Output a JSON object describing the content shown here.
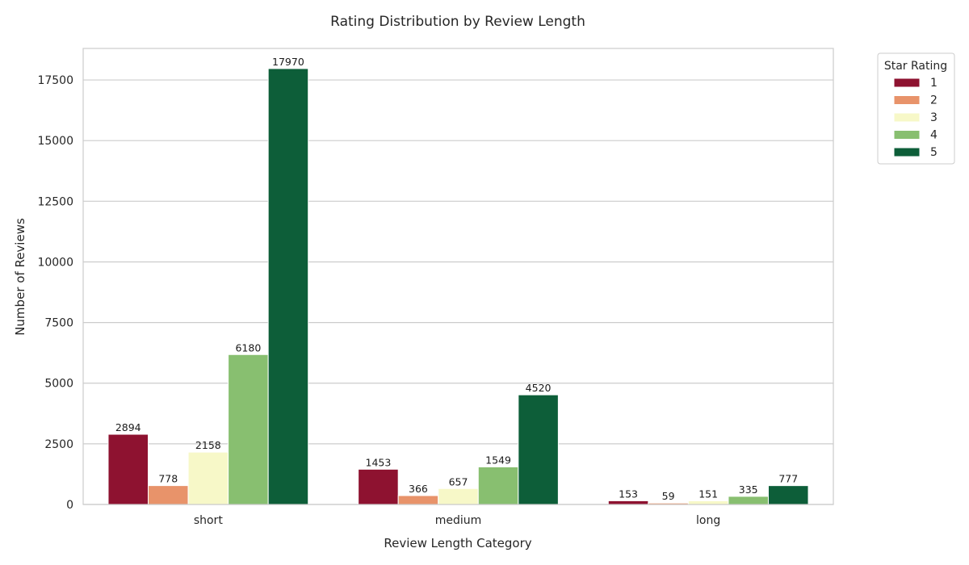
{
  "chart_data": {
    "type": "bar",
    "title": "Rating Distribution by Review Length",
    "xlabel": "Review Length Category",
    "ylabel": "Number of Reviews",
    "categories": [
      "short",
      "medium",
      "long"
    ],
    "ylim": [
      0,
      18800
    ],
    "yticks": [
      0,
      2500,
      5000,
      7500,
      10000,
      12500,
      15000,
      17500
    ],
    "grid": true,
    "legend": {
      "title": "Star Rating",
      "placement": "outside-top-right"
    },
    "series": [
      {
        "name": "1",
        "color": "#8e1230",
        "values": [
          2894,
          1453,
          153
        ]
      },
      {
        "name": "2",
        "color": "#e8936a",
        "values": [
          778,
          366,
          59
        ]
      },
      {
        "name": "3",
        "color": "#f7f8c8",
        "values": [
          2158,
          657,
          151
        ]
      },
      {
        "name": "4",
        "color": "#88bf70",
        "values": [
          6180,
          1549,
          335
        ]
      },
      {
        "name": "5",
        "color": "#0d5e39",
        "values": [
          17970,
          4520,
          777
        ]
      }
    ]
  }
}
